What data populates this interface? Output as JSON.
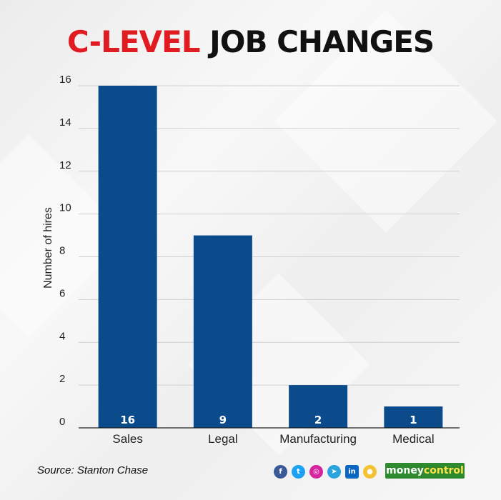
{
  "title": {
    "accent": "C-LEVEL",
    "rest": "JOB CHANGES"
  },
  "chart_data": {
    "type": "bar",
    "categories": [
      "Sales",
      "Legal",
      "Manufacturing",
      "Medical"
    ],
    "values": [
      16,
      9,
      2,
      1
    ],
    "title": "C-LEVEL JOB CHANGES",
    "xlabel": "",
    "ylabel": "Number of hires",
    "ylim": [
      0,
      16
    ],
    "yticks": [
      0,
      2,
      4,
      6,
      8,
      10,
      12,
      14,
      16
    ],
    "grid": true,
    "bar_color": "#0b4a8b"
  },
  "source": "Source: Stanton Chase",
  "social": [
    "facebook-icon",
    "twitter-icon",
    "instagram-icon",
    "telegram-icon",
    "linkedin-icon",
    "koo-icon"
  ],
  "brand": {
    "money": "money",
    "control": "control"
  },
  "colors": {
    "accent": "#e11b22",
    "bar": "#0b4a8b",
    "brand_green": "#2d8a2f"
  }
}
